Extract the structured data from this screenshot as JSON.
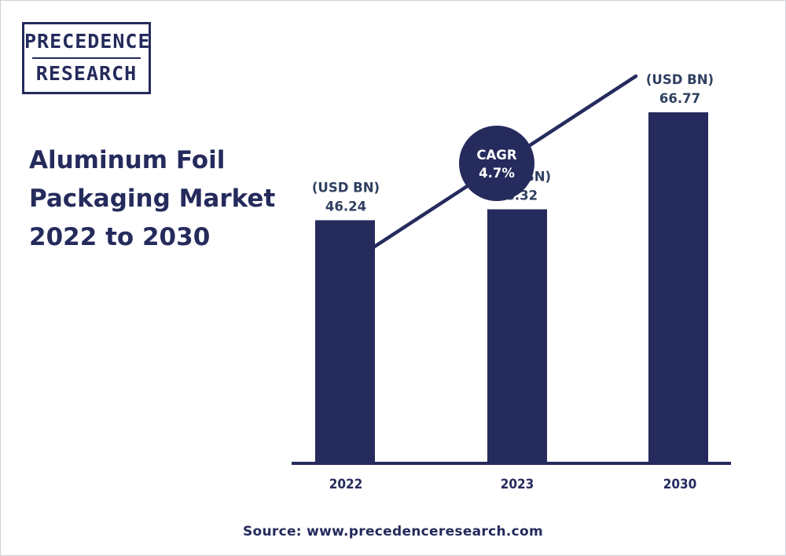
{
  "logo": {
    "line1": "PRECEDENCE",
    "line2": "RESEARCH"
  },
  "title_lines": [
    "Aluminum Foil",
    "Packaging Market",
    "2022 to 2030"
  ],
  "source": "Source: www.precedenceresearch.com",
  "colors": {
    "bar": "#252b5c",
    "text": "#252b5c",
    "value_label": "#2f3f60",
    "background": "#ffffff"
  },
  "chart_data": {
    "type": "bar",
    "categories": [
      "2022",
      "2023",
      "2030"
    ],
    "values": [
      46.24,
      48.32,
      66.77
    ],
    "unit_label": "(USD BN)",
    "ylim": [
      0,
      70
    ],
    "grid": false,
    "annotation": {
      "shape": "circle",
      "lines": [
        "CAGR",
        "4.7%"
      ],
      "trend_arrow": "diagonal line rising from left to right"
    }
  }
}
